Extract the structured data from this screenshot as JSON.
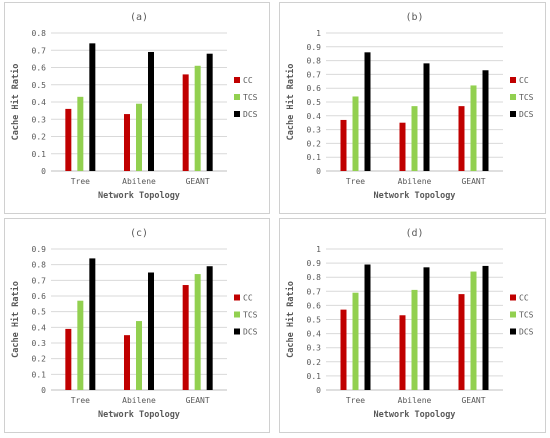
{
  "colors": {
    "CC": "#c00000",
    "TCS": "#92d050",
    "DCS": "#000000",
    "grid": "#d9d9d9",
    "axis": "#bfbfbf",
    "text": "#595959"
  },
  "chart_data": [
    {
      "type": "bar",
      "title": "(a)",
      "xlabel": "Network Topology",
      "ylabel": "Cache Hit Ratio",
      "ylim": [
        0,
        0.8
      ],
      "yticks": [
        "0",
        "0.1",
        "0.2",
        "0.3",
        "0.4",
        "0.5",
        "0.6",
        "0.7",
        "0.8"
      ],
      "categories": [
        "Tree",
        "Abilene",
        "GEANT"
      ],
      "series": [
        {
          "name": "CC",
          "values": [
            0.36,
            0.33,
            0.56
          ]
        },
        {
          "name": "TCS",
          "values": [
            0.43,
            0.39,
            0.61
          ]
        },
        {
          "name": "DCS",
          "values": [
            0.74,
            0.69,
            0.68
          ]
        }
      ],
      "legend": "right",
      "grid": true
    },
    {
      "type": "bar",
      "title": "(b)",
      "xlabel": "Network Topology",
      "ylabel": "Cache Hit Ratio",
      "ylim": [
        0,
        1
      ],
      "yticks": [
        "0",
        "0.1",
        "0.2",
        "0.3",
        "0.4",
        "0.5",
        "0.6",
        "0.7",
        "0.8",
        "0.9",
        "1"
      ],
      "categories": [
        "Tree",
        "Abilene",
        "GEANT"
      ],
      "series": [
        {
          "name": "CC",
          "values": [
            0.37,
            0.35,
            0.47
          ]
        },
        {
          "name": "TCS",
          "values": [
            0.54,
            0.47,
            0.62
          ]
        },
        {
          "name": "DCS",
          "values": [
            0.86,
            0.78,
            0.73
          ]
        }
      ],
      "legend": "right",
      "grid": true
    },
    {
      "type": "bar",
      "title": "(c)",
      "xlabel": "Network Topology",
      "ylabel": "Cache Hit Ratio",
      "ylim": [
        0,
        0.9
      ],
      "yticks": [
        "0",
        "0.1",
        "0.2",
        "0.3",
        "0.4",
        "0.5",
        "0.6",
        "0.7",
        "0.8",
        "0.9"
      ],
      "categories": [
        "Tree",
        "Abilene",
        "GEANT"
      ],
      "series": [
        {
          "name": "CC",
          "values": [
            0.39,
            0.35,
            0.67
          ]
        },
        {
          "name": "TCS",
          "values": [
            0.57,
            0.44,
            0.74
          ]
        },
        {
          "name": "DCS",
          "values": [
            0.84,
            0.75,
            0.79
          ]
        }
      ],
      "legend": "right",
      "grid": true
    },
    {
      "type": "bar",
      "title": "(d)",
      "xlabel": "Network Topology",
      "ylabel": "Cache Hit Ratio",
      "ylim": [
        0,
        1
      ],
      "yticks": [
        "0",
        "0.1",
        "0.2",
        "0.3",
        "0.4",
        "0.5",
        "0.6",
        "0.7",
        "0.8",
        "0.9",
        "1"
      ],
      "categories": [
        "Tree",
        "Abilene",
        "GEANT"
      ],
      "series": [
        {
          "name": "CC",
          "values": [
            0.57,
            0.53,
            0.68
          ]
        },
        {
          "name": "TCS",
          "values": [
            0.69,
            0.71,
            0.84
          ]
        },
        {
          "name": "DCS",
          "values": [
            0.89,
            0.87,
            0.88
          ]
        }
      ],
      "legend": "right",
      "grid": true
    }
  ]
}
